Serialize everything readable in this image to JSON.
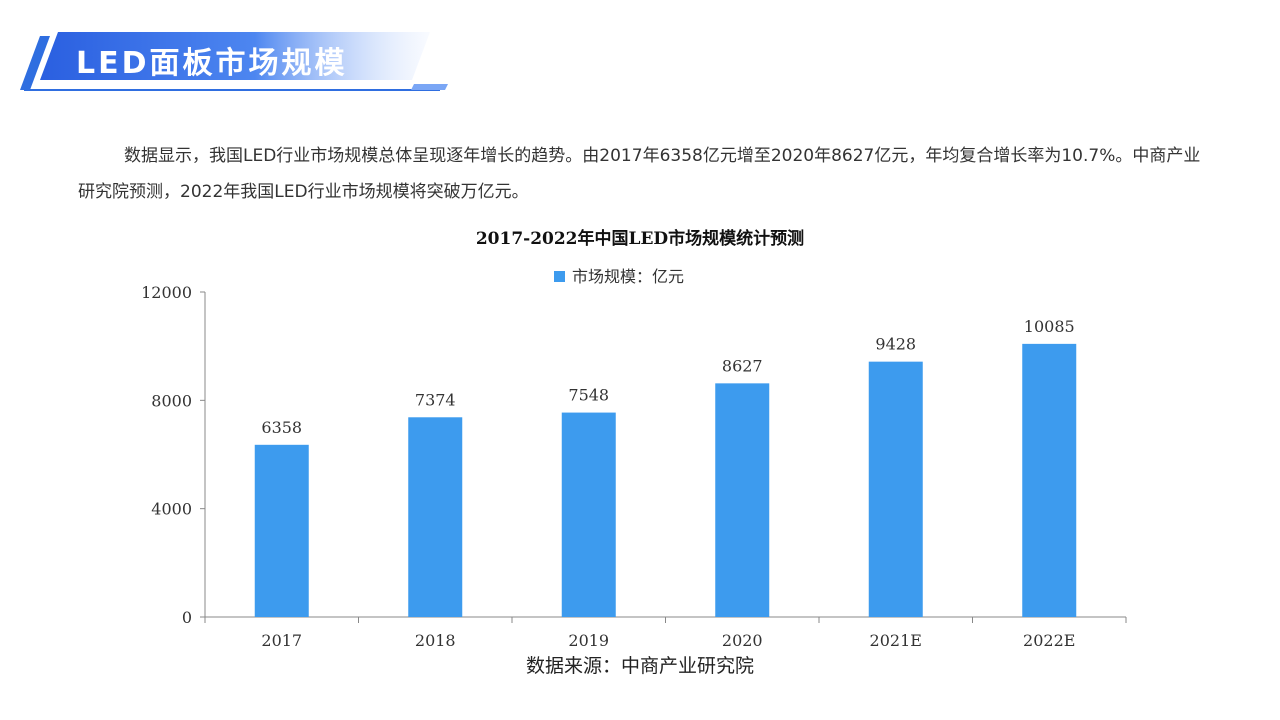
{
  "header": {
    "title": "LED面板市场规模"
  },
  "intro": {
    "text": "数据显示，我国LED行业市场规模总体呈现逐年增长的趋势。由2017年6358亿元增至2020年8627亿元，年均复合增长率为10.7%。中商产业研究院预测，2022年我国LED行业市场规模将突破万亿元。"
  },
  "source": {
    "text": "数据来源：中商产业研究院"
  },
  "colors": {
    "bar": "#3d9bee",
    "accent": "#2f6ee0"
  },
  "chart_data": {
    "type": "bar",
    "title": "2017-2022年中国LED市场规模统计预测",
    "categories": [
      "2017",
      "2018",
      "2019",
      "2020",
      "2021E",
      "2022E"
    ],
    "series": [
      {
        "name": "市场规模：亿元",
        "values": [
          6358,
          7374,
          7548,
          8627,
          9428,
          10085
        ]
      }
    ],
    "ylim": [
      0,
      12000
    ],
    "yticks": [
      "0",
      "4000",
      "8000",
      "12000"
    ],
    "legend_position": "top-center",
    "grid": false
  }
}
